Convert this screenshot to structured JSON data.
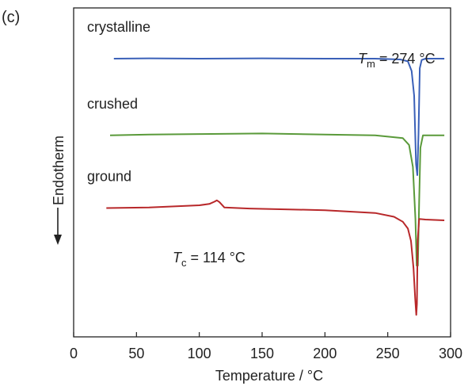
{
  "panel_label": "(c)",
  "chart_data": {
    "type": "line",
    "xlabel": "Temperature / °C",
    "ylabel": "Endotherm",
    "xlim": [
      0,
      300
    ],
    "xticks": [
      0,
      50,
      100,
      150,
      200,
      250,
      300
    ],
    "y_ticks_shown": false,
    "grid": false,
    "legend": "none",
    "series": [
      {
        "name": "crystalline",
        "color": "#3a60b8",
        "x": [
          32,
          60,
          100,
          150,
          200,
          240,
          260,
          266,
          269,
          271,
          272.5,
          273.5,
          274.5,
          275.5,
          277,
          280,
          295
        ],
        "y": [
          9.15,
          9.16,
          9.15,
          9.16,
          9.15,
          9.15,
          9.12,
          9.05,
          8.7,
          7.8,
          5.3,
          4.9,
          6.4,
          8.8,
          9.1,
          9.15,
          9.15
        ]
      },
      {
        "name": "crushed",
        "color": "#5a9a3a",
        "x": [
          29,
          60,
          100,
          150,
          200,
          240,
          262,
          267,
          270,
          272,
          273,
          274,
          275,
          276,
          278,
          282,
          295
        ],
        "y": [
          6.35,
          6.38,
          6.4,
          6.42,
          6.38,
          6.35,
          6.25,
          6.0,
          5.2,
          3.3,
          1.6,
          1.6,
          3.9,
          5.9,
          6.35,
          6.35,
          6.35
        ]
      },
      {
        "name": "ground",
        "color": "#b8282a",
        "x": [
          26,
          60,
          100,
          108,
          112,
          114,
          116,
          120,
          140,
          200,
          240,
          255,
          262,
          266,
          268.5,
          270.5,
          271.8,
          272.7,
          273.2,
          273.8,
          275,
          280,
          295
        ],
        "y": [
          3.7,
          3.72,
          3.8,
          3.85,
          3.93,
          3.98,
          3.92,
          3.72,
          3.68,
          3.62,
          3.52,
          3.38,
          3.2,
          2.95,
          2.5,
          1.5,
          0.4,
          -0.2,
          0.2,
          2.5,
          3.3,
          3.28,
          3.25
        ]
      }
    ],
    "annotations": [
      {
        "id": "tm",
        "prefix": "T",
        "sub": "m",
        "suffix": " = 274 °C"
      },
      {
        "id": "tc",
        "prefix": "T",
        "sub": "c",
        "suffix": " = 114 °C"
      }
    ]
  }
}
